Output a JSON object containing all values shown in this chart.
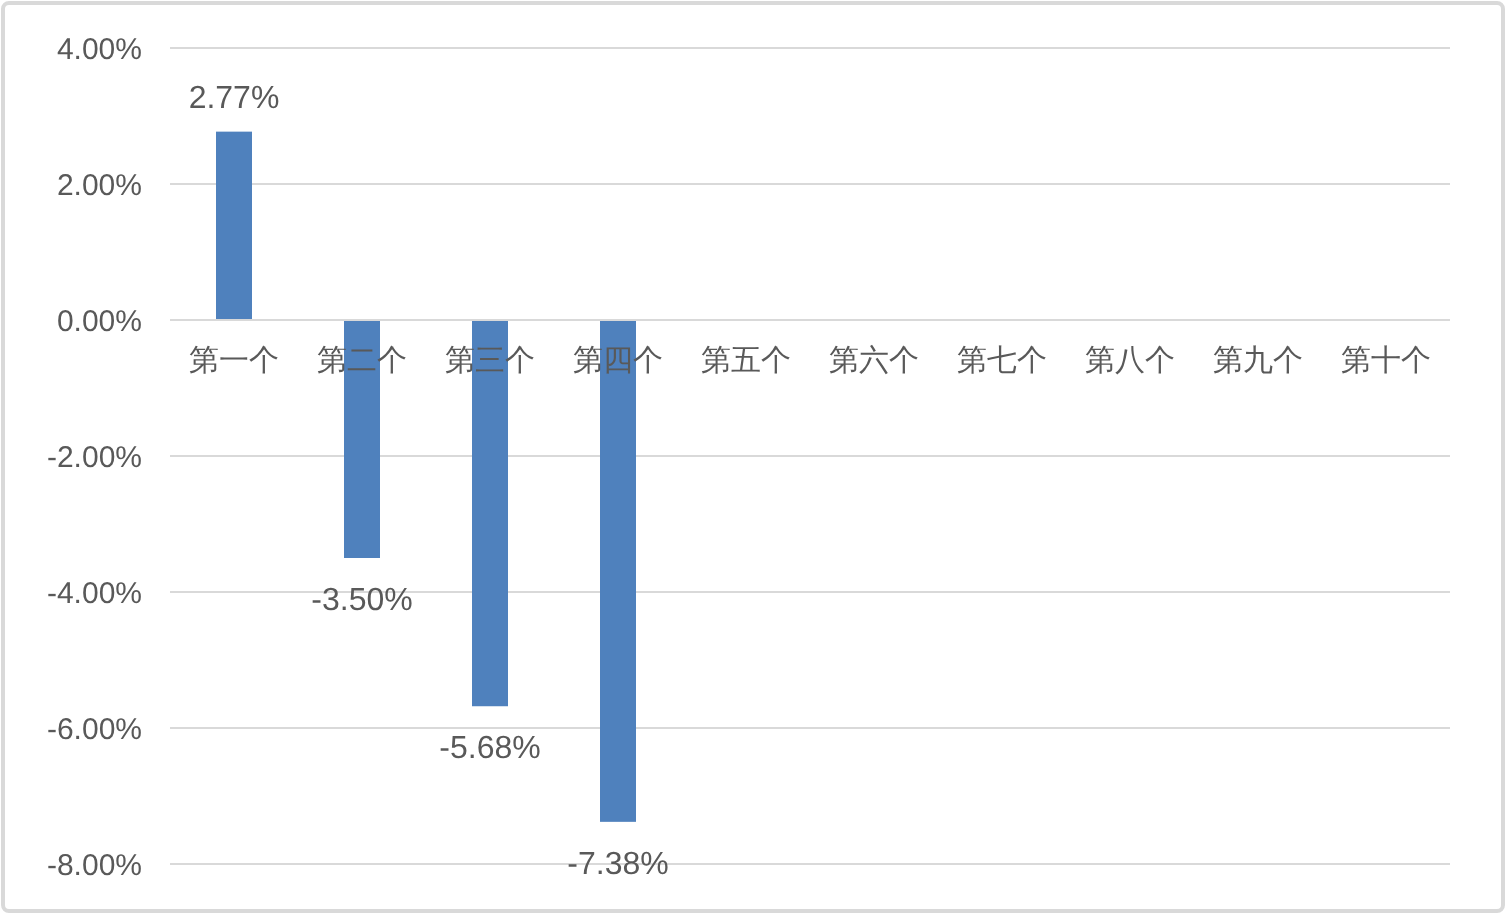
{
  "chart_data": {
    "type": "bar",
    "categories": [
      "第一个",
      "第二个",
      "第三个",
      "第四个",
      "第五个",
      "第六个",
      "第七个",
      "第八个",
      "第九个",
      "第十个"
    ],
    "values": [
      2.77,
      -3.5,
      -5.68,
      -7.38,
      null,
      null,
      null,
      null,
      null,
      null
    ],
    "color": "#4f81bd",
    "value_labels": [
      "2.77%",
      "-3.50%",
      "-5.68%",
      "-7.38%",
      null,
      null,
      null,
      null,
      null,
      null
    ],
    "ylim": [
      -8,
      4
    ],
    "yticks": [
      {
        "value": -8,
        "label": "-8.00%"
      },
      {
        "value": -6,
        "label": "-6.00%"
      },
      {
        "value": -4,
        "label": "-4.00%"
      },
      {
        "value": -2,
        "label": "-2.00%"
      },
      {
        "value": 0,
        "label": "0.00%"
      },
      {
        "value": 2,
        "label": "2.00%"
      },
      {
        "value": 4,
        "label": "4.00%"
      }
    ],
    "grid": "y"
  }
}
